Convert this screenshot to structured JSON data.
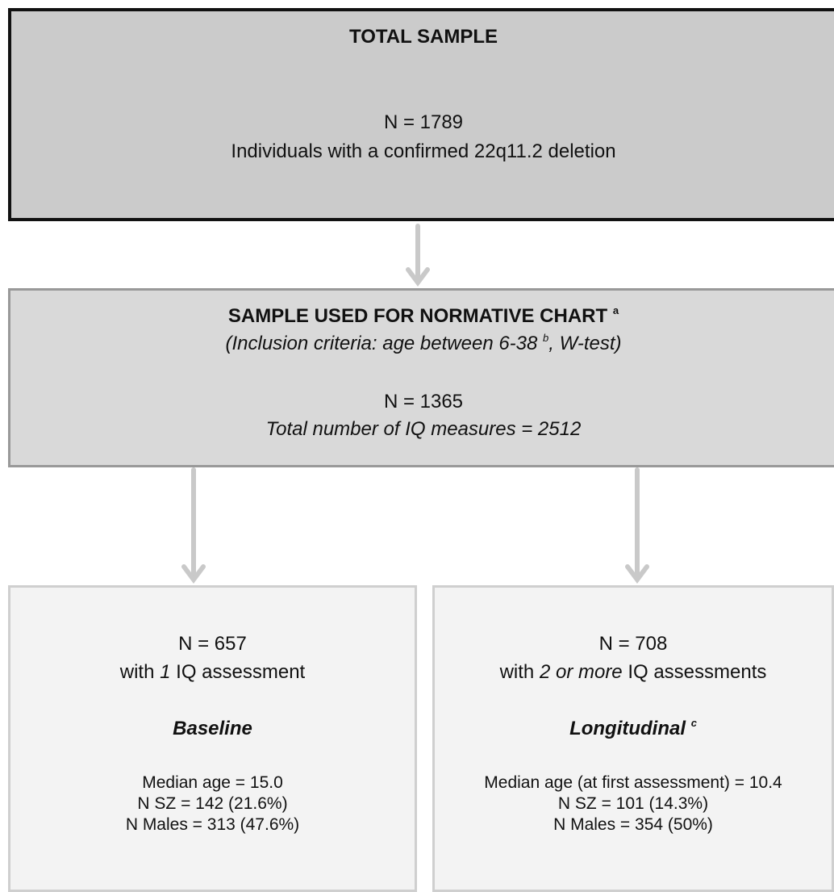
{
  "nodes": [
    {
      "title": "TOTAL SAMPLE",
      "n": "N = 1789",
      "description": "Individuals with a confirmed 22q11.2 deletion"
    },
    {
      "title": "SAMPLE USED FOR NORMATIVE CHART",
      "title_note": "a",
      "criteria": [
        "(Inclusion criteria: age between 6-38",
        "b",
        ", W-test)"
      ],
      "n": "N = 1365",
      "measures": "Total number of IQ measures = 2512"
    },
    {
      "n": "N = 657",
      "assessments": [
        "with",
        "1",
        "IQ assessment"
      ],
      "label": "Baseline",
      "stats": [
        "Median age = 15.0",
        "N SZ = 142 (21.6%)",
        "N Males = 313 (47.6%)"
      ]
    },
    {
      "n": "N = 708",
      "assessments": [
        "with",
        "2 or more",
        "IQ assessments"
      ],
      "label": "Longitudinal",
      "label_note": "c",
      "stats": [
        "Median age (at first assessment) = 10.4",
        "N SZ = 101 (14.3%)",
        "N Males = 354 (50%)"
      ]
    }
  ]
}
